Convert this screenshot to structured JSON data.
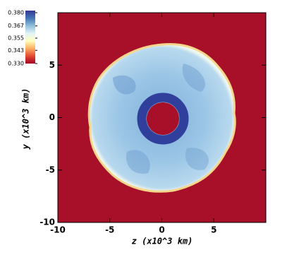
{
  "chart_data": {
    "type": "heatmap",
    "xlabel": "z (x10^3 km)",
    "ylabel": "y (x10^3 km)",
    "xlim": [
      -10,
      10
    ],
    "ylim": [
      -10,
      10
    ],
    "xticks": [
      -10,
      -5,
      0,
      5
    ],
    "yticks": [
      -10,
      -5,
      0,
      5
    ],
    "colorlim": [
      0.33,
      0.38
    ],
    "colorticks": [
      {
        "value": 0.38,
        "label": "0.380"
      },
      0.367,
      0.355,
      0.343,
      {
        "value": 0.33,
        "label": "0.330"
      }
    ],
    "colormap": [
      "#a50026",
      "#e34a33",
      "#fdae61",
      "#ffffbf",
      "#e0f3f8",
      "#91bfdb",
      "#4575b4",
      "#313695"
    ]
  }
}
